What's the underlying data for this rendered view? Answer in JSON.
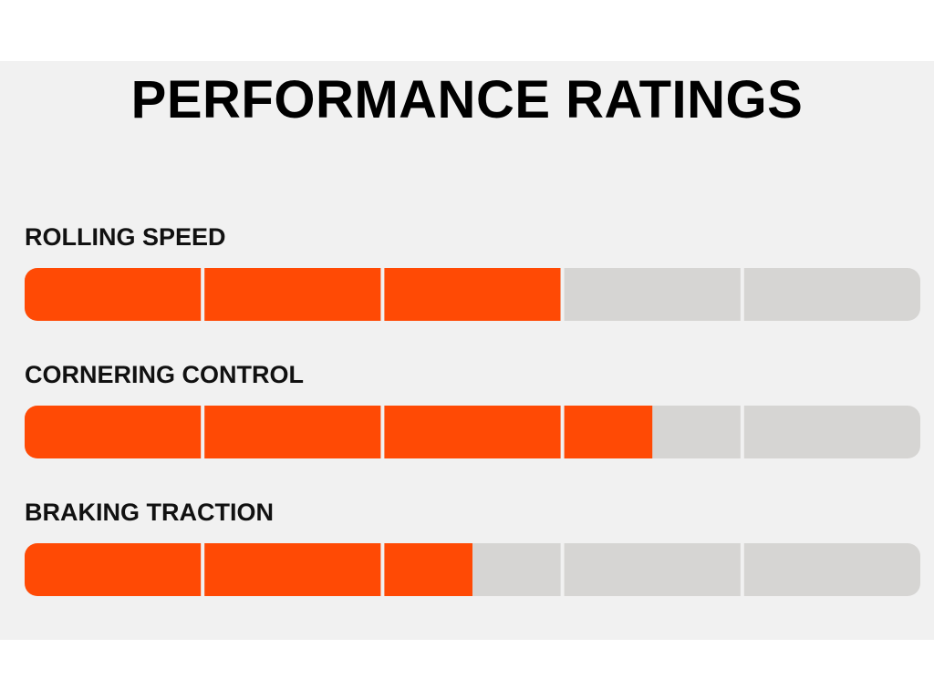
{
  "title": "PERFORMANCE RATINGS",
  "chart_data": {
    "type": "bar",
    "orientation": "horizontal",
    "scale_max": 5,
    "categories": [
      "ROLLING SPEED",
      "CORNERING CONTROL",
      "BRAKING TRACTION"
    ],
    "values": [
      3,
      3.5,
      2.5
    ],
    "colors": {
      "fill": "#ff4a05",
      "track": "#d6d5d3",
      "divider": "#f1f1f1"
    }
  }
}
